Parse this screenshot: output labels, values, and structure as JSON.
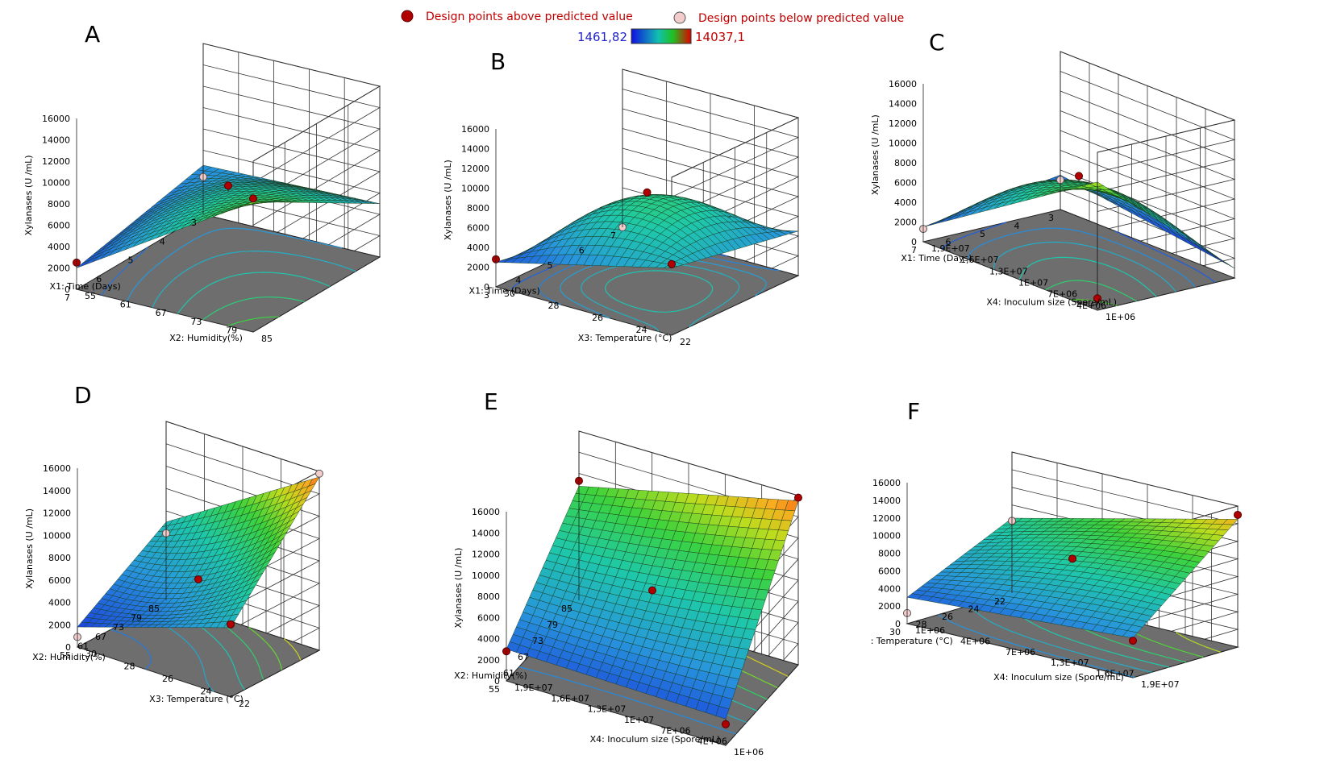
{
  "legend": {
    "above_label": "Design points above predicted value",
    "below_label": "Design points below predicted value",
    "color_min": "1461,82",
    "color_max": "14037,1",
    "above_color": "#b00000",
    "below_color": "#f4cccc",
    "label_color": "#c00000",
    "min_color": "#2222cc"
  },
  "chart_data": [
    {
      "id": "A",
      "type": "surface",
      "panel_label": "A",
      "zlabel": "Xylanases (U /mL)",
      "z_ticks": [
        "16000",
        "14000",
        "12000",
        "10000",
        "8000",
        "6000",
        "4000",
        "2000",
        "0"
      ],
      "xlabel": "X1: Time (Days)",
      "x_ticks": [
        "3",
        "4",
        "5",
        "6",
        "7"
      ],
      "ylabel": "X2: Humidity(%)",
      "y_ticks": [
        "55",
        "61",
        "67",
        "73",
        "79",
        "85"
      ],
      "zlim": [
        0,
        16000
      ],
      "z_corners": {
        "x0y0": 4600,
        "x1y0": 2000,
        "x0y1": 5000,
        "x1y1": 12200
      },
      "z_center": 7600,
      "design_points": [
        {
          "x": 0.5,
          "y": 0.5,
          "z": 8200,
          "above": true
        },
        {
          "x": 1,
          "y": 1,
          "z": 12500,
          "above": true
        },
        {
          "x": 1,
          "y": 0,
          "z": 2500,
          "above": true
        },
        {
          "x": 0,
          "y": 0,
          "z": 3500,
          "above": false
        }
      ]
    },
    {
      "id": "B",
      "type": "surface",
      "panel_label": "B",
      "zlabel": "Xylanases (U /mL)",
      "z_ticks": [
        "16000",
        "14000",
        "12000",
        "10000",
        "8000",
        "6000",
        "4000",
        "2000",
        "0"
      ],
      "xlabel": "X1: Time (Days)",
      "x_ticks": [
        "7",
        "6",
        "5",
        "4",
        "3"
      ],
      "ylabel": "X3: Temperature (°C)",
      "y_ticks": [
        "30",
        "28",
        "26",
        "24",
        "22"
      ],
      "zlim": [
        0,
        16000
      ],
      "z_corners": {
        "x0y0": 500,
        "x1y0": 2500,
        "x0y1": 4500,
        "x1y1": 6800
      },
      "z_center": 8600,
      "design_points": [
        {
          "x": 0.5,
          "y": 0.5,
          "z": 9000,
          "above": true
        },
        {
          "x": 1,
          "y": 1,
          "z": 7200,
          "above": true
        },
        {
          "x": 1,
          "y": 0,
          "z": 2800,
          "above": true
        },
        {
          "x": 0,
          "y": 0,
          "z": 0,
          "above": false
        }
      ]
    },
    {
      "id": "C",
      "type": "surface",
      "panel_label": "C",
      "zlabel": "Xylanases (U /mL)",
      "z_ticks": [
        "16000",
        "14000",
        "12000",
        "10000",
        "8000",
        "6000",
        "4000",
        "2000",
        "0"
      ],
      "xlabel": "X1: Time (Days)",
      "x_ticks": [
        "3",
        "4",
        "5",
        "6",
        "7"
      ],
      "ylabel": "X4: Inoculum size (Spore/mL)",
      "y_ticks": [
        "1,9E+07",
        "1,6E+07",
        "1,3E+07",
        "1E+07",
        "7E+06",
        "4E+06",
        "1E+06"
      ],
      "zlim": [
        0,
        16000
      ],
      "z_corners": {
        "x0y0": 3500,
        "x1y0": 1500,
        "x0y1": 1000,
        "x1y1": 13000
      },
      "z_center": 8000,
      "design_points": [
        {
          "x": 0.5,
          "y": 0.5,
          "z": 8500,
          "above": true
        },
        {
          "x": 1,
          "y": 1,
          "z": 1200,
          "above": true
        },
        {
          "x": 0,
          "y": 0,
          "z": 3000,
          "above": false
        },
        {
          "x": 1,
          "y": 0,
          "z": 1300,
          "above": false
        }
      ]
    },
    {
      "id": "D",
      "type": "surface",
      "panel_label": "D",
      "zlabel": "Xylanases (U /mL)",
      "z_ticks": [
        "16000",
        "14000",
        "12000",
        "10000",
        "8000",
        "6000",
        "4000",
        "2000",
        "0"
      ],
      "xlabel": "X2: Humidity(%)",
      "x_ticks": [
        "85",
        "79",
        "73",
        "67",
        "61",
        "55"
      ],
      "ylabel": "X3: Temperature (°C)",
      "y_ticks": [
        "30",
        "28",
        "26",
        "24",
        "22"
      ],
      "zlim": [
        0,
        16000
      ],
      "z_corners": {
        "x0y0": 7000,
        "x1y0": 1800,
        "x0y1": 15500,
        "x1y1": 6200
      },
      "z_center": 6000,
      "design_points": [
        {
          "x": 0.5,
          "y": 0.5,
          "z": 6200,
          "above": true
        },
        {
          "x": 1,
          "y": 1,
          "z": 6500,
          "above": true
        },
        {
          "x": 0,
          "y": 0,
          "z": 6000,
          "above": false
        },
        {
          "x": 0,
          "y": 1,
          "z": 15800,
          "above": false
        },
        {
          "x": 1,
          "y": 0,
          "z": 900,
          "above": false
        }
      ]
    },
    {
      "id": "E",
      "type": "surface",
      "panel_label": "E",
      "zlabel": "Xylanases (U /mL)",
      "z_ticks": [
        "16000",
        "14000",
        "12000",
        "10000",
        "8000",
        "6000",
        "4000",
        "2000",
        "0"
      ],
      "xlabel": "X2: Humidity(%)",
      "x_ticks": [
        "85",
        "79",
        "73",
        "67",
        "61",
        "55"
      ],
      "ylabel": "X4: Inoculum size (Spore/mL)",
      "y_ticks": [
        "1,9E+07",
        "1,6E+07",
        "1,3E+07",
        "1E+07",
        "7E+06",
        "4E+06",
        "1E+06"
      ],
      "zlim": [
        0,
        16000
      ],
      "z_corners": {
        "x0y0": 10800,
        "x1y0": 3000,
        "x0y1": 15500,
        "x1y1": 2500
      },
      "z_center": 7500,
      "design_points": [
        {
          "x": 0.5,
          "y": 0.5,
          "z": 7800,
          "above": true
        },
        {
          "x": 0,
          "y": 0,
          "z": 11300,
          "above": true
        },
        {
          "x": 0,
          "y": 1,
          "z": 15800,
          "above": true
        },
        {
          "x": 1,
          "y": 1,
          "z": 2000,
          "above": true
        },
        {
          "x": 1,
          "y": 0,
          "z": 2800,
          "above": true
        }
      ]
    },
    {
      "id": "F",
      "type": "surface",
      "panel_label": "F",
      "zlabel": "Xylanases (U /mL)",
      "z_ticks": [
        "16000",
        "14000",
        "12000",
        "10000",
        "8000",
        "6000",
        "4000",
        "2000",
        "0"
      ],
      "xlabel": "X3: Temperature (°C)",
      "x_ticks": [
        "22",
        "24",
        "26",
        "28",
        "30"
      ],
      "ylabel": "X4: Inoculum size (Spore/mL)",
      "y_ticks": [
        "1E+06",
        "4E+06",
        "7E+06",
        "1,3E+07",
        "1,6E+07",
        "1,9E+07"
      ],
      "zlim": [
        0,
        16000
      ],
      "z_corners": {
        "x0y0": 8500,
        "x1y0": 3000,
        "x0y1": 14500,
        "x1y1": 4500
      },
      "z_center": 8500,
      "design_points": [
        {
          "x": 0.5,
          "y": 0.5,
          "z": 8700,
          "above": true
        },
        {
          "x": 0,
          "y": 1,
          "z": 15000,
          "above": true
        },
        {
          "x": 1,
          "y": 1,
          "z": 4200,
          "above": true
        },
        {
          "x": 0,
          "y": 0,
          "z": 8200,
          "above": false
        },
        {
          "x": 1,
          "y": 0,
          "z": 1200,
          "above": false
        }
      ]
    }
  ]
}
